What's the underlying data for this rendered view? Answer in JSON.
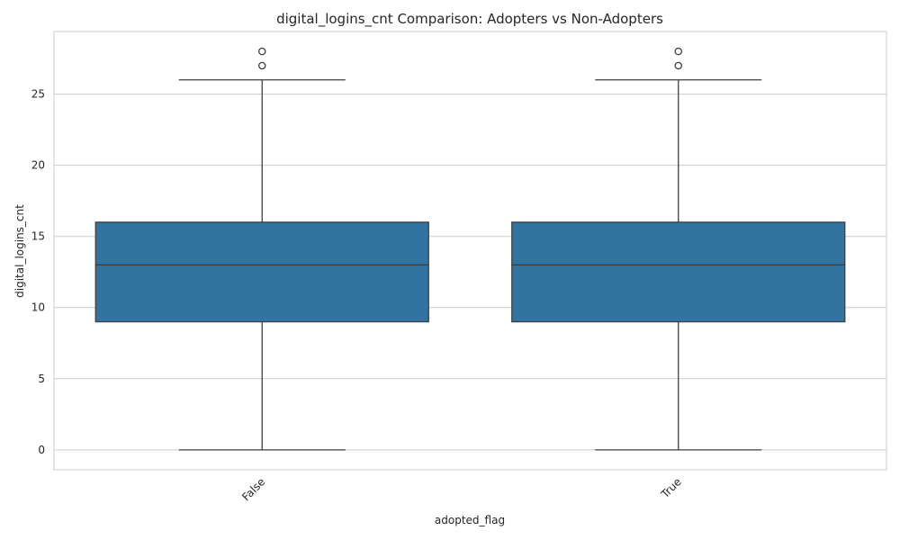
{
  "chart_data": {
    "type": "box",
    "title": "digital_logins_cnt Comparison: Adopters vs Non-Adopters",
    "xlabel": "adopted_flag",
    "ylabel": "digital_logins_cnt",
    "categories": [
      "False",
      "True"
    ],
    "ylim": [
      -1.4,
      29.4
    ],
    "yticks": [
      0,
      5,
      10,
      15,
      20,
      25
    ],
    "grid": true,
    "boxes": [
      {
        "category": "False",
        "whisker_low": 0,
        "q1": 9,
        "median": 13,
        "q3": 16,
        "whisker_high": 26,
        "outliers": [
          27,
          28
        ]
      },
      {
        "category": "True",
        "whisker_low": 0,
        "q1": 9,
        "median": 13,
        "q3": 16,
        "whisker_high": 26,
        "outliers": [
          27,
          28
        ]
      }
    ],
    "colors": {
      "box_fill": "#3274a1",
      "line": "#3f3f3f",
      "grid": "#cccccc",
      "frame": "#cccccc"
    }
  }
}
